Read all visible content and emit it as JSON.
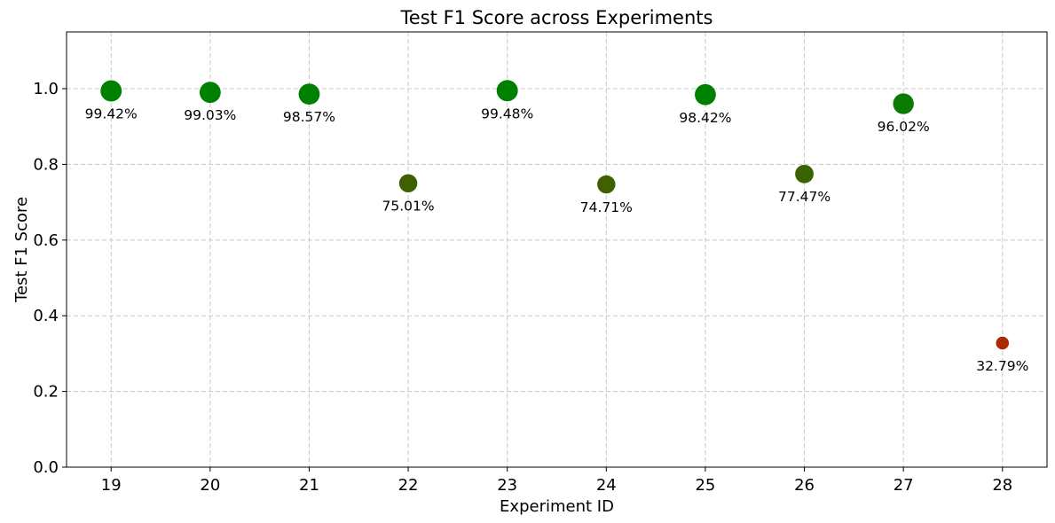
{
  "chart_data": {
    "type": "scatter",
    "title": "Test F1 Score across Experiments",
    "xlabel": "Experiment ID",
    "ylabel": "Test F1 Score",
    "ylim": [
      0.0,
      1.15
    ],
    "xlim": [
      18.55,
      28.45
    ],
    "grid": true,
    "x_ticks": [
      "19",
      "20",
      "21",
      "22",
      "23",
      "24",
      "25",
      "26",
      "27",
      "28"
    ],
    "y_ticks": [
      "0.0",
      "0.2",
      "0.4",
      "0.6",
      "0.8",
      "1.0"
    ],
    "points": [
      {
        "x": 19,
        "y": 0.9942,
        "label": "99.42%",
        "color": "#008000"
      },
      {
        "x": 20,
        "y": 0.9903,
        "label": "99.03%",
        "color": "#008000"
      },
      {
        "x": 21,
        "y": 0.9857,
        "label": "98.57%",
        "color": "#008000"
      },
      {
        "x": 22,
        "y": 0.7501,
        "label": "75.01%",
        "color": "#3f6000"
      },
      {
        "x": 23,
        "y": 0.9948,
        "label": "99.48%",
        "color": "#008000"
      },
      {
        "x": 24,
        "y": 0.7471,
        "label": "74.71%",
        "color": "#406000"
      },
      {
        "x": 25,
        "y": 0.9842,
        "label": "98.42%",
        "color": "#008000"
      },
      {
        "x": 26,
        "y": 0.7747,
        "label": "77.47%",
        "color": "#396300"
      },
      {
        "x": 27,
        "y": 0.9602,
        "label": "96.02%",
        "color": "#0a7a00"
      },
      {
        "x": 28,
        "y": 0.3279,
        "label": "32.79%",
        "color": "#ab2b00"
      }
    ]
  }
}
